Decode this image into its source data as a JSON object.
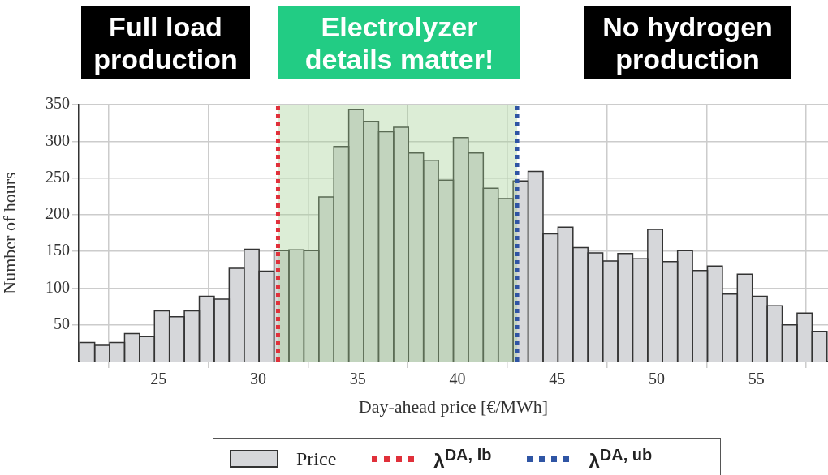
{
  "chart_data": {
    "type": "histogram",
    "xlabel": "Day-ahead price [€/MWh]",
    "ylabel": "Number of hours",
    "annotations": [
      "Full load production",
      "Electrolyzer details matter!",
      "No hydrogen production"
    ],
    "bins": [
      21.05,
      21.8,
      22.55,
      23.3,
      24.05,
      24.8,
      25.55,
      26.3,
      27.05,
      27.8,
      28.55,
      29.3,
      30.05,
      30.8,
      31.55,
      32.3,
      33.05,
      33.8,
      34.55,
      35.3,
      36.05,
      36.8,
      37.55,
      38.3,
      39.05,
      39.8,
      40.55,
      41.3,
      42.05,
      42.8,
      43.55,
      44.3,
      45.05,
      45.8,
      46.55,
      47.3,
      48.05,
      48.8,
      49.55,
      50.3,
      51.05,
      51.8,
      52.55,
      53.3,
      54.05,
      54.8,
      55.55,
      56.3,
      57.05,
      57.8,
      58.55
    ],
    "series": [
      {
        "name": "Price",
        "color": "#d6d7da",
        "values": [
          26,
          22,
          26,
          38,
          34,
          69,
          61,
          69,
          89,
          85,
          127,
          153,
          123,
          151,
          152,
          151,
          224,
          293,
          343,
          327,
          313,
          319,
          284,
          274,
          247,
          305,
          284,
          236,
          222,
          246,
          259,
          174,
          183,
          155,
          148,
          137,
          147,
          140,
          180,
          136,
          151,
          124,
          130,
          92,
          119,
          89,
          76,
          50,
          66,
          41
        ]
      }
    ],
    "xlim": [
      21,
      58.6
    ],
    "xticks": [
      25,
      30,
      35,
      40,
      45,
      50,
      55
    ],
    "ylim": [
      0,
      350
    ],
    "yticks": [
      50,
      100,
      150,
      200,
      250,
      300,
      350
    ],
    "grid": true,
    "legend": "bottom",
    "bands": [
      {
        "axis": "x",
        "from": 31,
        "to": 43,
        "color": "#9fce8f"
      }
    ],
    "ref_lines": [
      {
        "axis": "x",
        "value": 31,
        "label": "λ$^{DA, lb}$",
        "color": "#e0303a",
        "line_style": "dotted"
      },
      {
        "axis": "x",
        "value": 43,
        "label": "λ$^{DA, ub}$",
        "color": "#2f55a4",
        "line_style": "dotted"
      }
    ]
  }
}
